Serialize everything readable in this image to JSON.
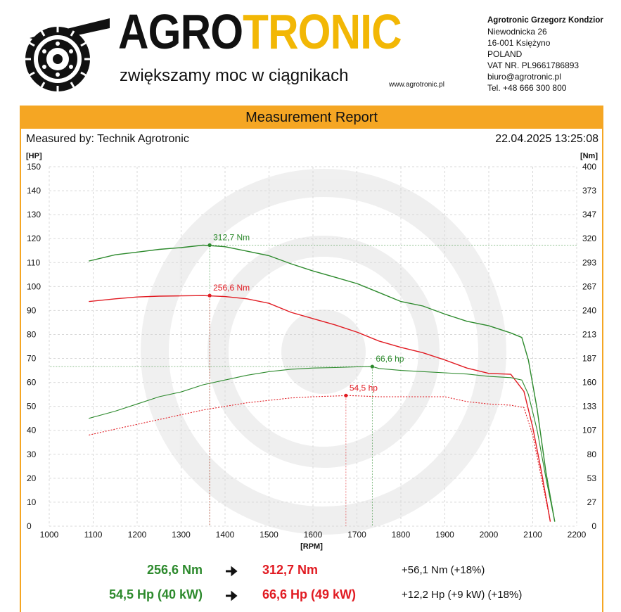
{
  "header": {
    "brand_part1": "AGRO",
    "brand_part2": "TRONIC",
    "tagline": "zwiększamy moc w ciągnikach",
    "website": "www.agrotronic.pl",
    "company": {
      "name": "Agrotronic Grzegorz Kondzior",
      "street": "Niewodnicka 26",
      "city": "16-001 Księżyno",
      "country": "POLAND",
      "vat": "VAT NR. PL9661786893",
      "email": "biuro@agrotronic.pl",
      "phone": "Tel. +48 666 300 800"
    }
  },
  "report": {
    "title": "Measurement Report",
    "measured_by": "Measured by: Technik Agrotronic",
    "datetime": "22.04.2025 13:25:08"
  },
  "colors": {
    "accent": "#f5a623",
    "tuned": "#2d8a2d",
    "stock": "#e11b22"
  },
  "chart_data": {
    "type": "line",
    "xlabel": "[RPM]",
    "ylabel_left": "[HP]",
    "ylabel_right": "[Nm]",
    "xlim": [
      1000,
      2200
    ],
    "ylim_left": [
      0,
      150
    ],
    "ylim_right": [
      0,
      400
    ],
    "x_ticks": [
      1000,
      1100,
      1200,
      1300,
      1400,
      1500,
      1600,
      1700,
      1800,
      1900,
      2000,
      2100,
      2200
    ],
    "y_ticks_left": [
      0,
      10,
      20,
      30,
      40,
      50,
      60,
      70,
      80,
      90,
      100,
      110,
      120,
      130,
      140,
      150
    ],
    "y_ticks_right": [
      "0",
      "27",
      "53",
      "80",
      "107",
      "133",
      "160",
      "187",
      "213",
      "240",
      "267",
      "293",
      "320",
      "347",
      "373",
      "400"
    ],
    "grid": true,
    "series": [
      {
        "axis": "right",
        "color": "#2d8a2d",
        "style": "solid",
        "points": [
          [
            1090,
            295
          ],
          [
            1150,
            302
          ],
          [
            1200,
            305
          ],
          [
            1250,
            308
          ],
          [
            1300,
            310
          ],
          [
            1350,
            312.7
          ],
          [
            1400,
            311
          ],
          [
            1450,
            306
          ],
          [
            1500,
            301
          ],
          [
            1550,
            292
          ],
          [
            1600,
            284
          ],
          [
            1650,
            277
          ],
          [
            1700,
            270
          ],
          [
            1750,
            260
          ],
          [
            1800,
            250
          ],
          [
            1850,
            245
          ],
          [
            1900,
            236
          ],
          [
            1950,
            228
          ],
          [
            2000,
            223
          ],
          [
            2050,
            215
          ],
          [
            2075,
            210
          ],
          [
            2090,
            185
          ],
          [
            2110,
            130
          ],
          [
            2130,
            60
          ],
          [
            2150,
            5
          ]
        ]
      },
      {
        "axis": "right",
        "color": "#e11b22",
        "style": "solid",
        "points": [
          [
            1090,
            250
          ],
          [
            1150,
            253
          ],
          [
            1200,
            255
          ],
          [
            1250,
            256
          ],
          [
            1300,
            256.3
          ],
          [
            1350,
            256.6
          ],
          [
            1400,
            255.5
          ],
          [
            1450,
            253
          ],
          [
            1500,
            248
          ],
          [
            1550,
            238
          ],
          [
            1600,
            231
          ],
          [
            1650,
            224
          ],
          [
            1700,
            216
          ],
          [
            1750,
            206
          ],
          [
            1800,
            199
          ],
          [
            1850,
            193
          ],
          [
            1900,
            185
          ],
          [
            1950,
            176
          ],
          [
            2000,
            170
          ],
          [
            2050,
            169
          ],
          [
            2080,
            150
          ],
          [
            2100,
            110
          ],
          [
            2120,
            60
          ],
          [
            2140,
            5
          ]
        ]
      },
      {
        "axis": "left",
        "color": "#2d8a2d",
        "style": "solid",
        "points": [
          [
            1090,
            45
          ],
          [
            1150,
            48
          ],
          [
            1200,
            51
          ],
          [
            1250,
            54
          ],
          [
            1300,
            56
          ],
          [
            1350,
            59
          ],
          [
            1400,
            61
          ],
          [
            1450,
            63
          ],
          [
            1500,
            64.5
          ],
          [
            1550,
            65.5
          ],
          [
            1600,
            66
          ],
          [
            1650,
            66.2
          ],
          [
            1700,
            66.5
          ],
          [
            1735,
            66.6
          ],
          [
            1750,
            65.8
          ],
          [
            1800,
            65
          ],
          [
            1850,
            64.5
          ],
          [
            1900,
            64
          ],
          [
            1950,
            63.5
          ],
          [
            2000,
            62.5
          ],
          [
            2050,
            62
          ],
          [
            2075,
            61
          ],
          [
            2090,
            55
          ],
          [
            2110,
            40
          ],
          [
            2130,
            20
          ],
          [
            2150,
            2
          ]
        ]
      },
      {
        "axis": "left",
        "color": "#e11b22",
        "style": "dotted",
        "points": [
          [
            1090,
            38
          ],
          [
            1150,
            40.5
          ],
          [
            1200,
            42.5
          ],
          [
            1250,
            44.5
          ],
          [
            1300,
            46.5
          ],
          [
            1350,
            48.5
          ],
          [
            1400,
            50
          ],
          [
            1450,
            51.5
          ],
          [
            1500,
            52.5
          ],
          [
            1550,
            53.5
          ],
          [
            1600,
            54
          ],
          [
            1650,
            54.3
          ],
          [
            1675,
            54.5
          ],
          [
            1700,
            54.4
          ],
          [
            1750,
            54
          ],
          [
            1800,
            54
          ],
          [
            1850,
            54
          ],
          [
            1900,
            54
          ],
          [
            1950,
            52
          ],
          [
            2000,
            51
          ],
          [
            2050,
            50.5
          ],
          [
            2080,
            49.5
          ],
          [
            2100,
            38
          ],
          [
            2120,
            20
          ],
          [
            2140,
            2
          ]
        ]
      }
    ],
    "annotations": [
      {
        "text": "312,7 Nm",
        "x": 1365,
        "value": 312.7,
        "axis": "right",
        "color": "#2d8a2d"
      },
      {
        "text": "256,6 Nm",
        "x": 1365,
        "value": 256.6,
        "axis": "right",
        "color": "#e11b22"
      },
      {
        "text": "66,6 hp",
        "x": 1735,
        "value": 66.6,
        "axis": "left",
        "color": "#2d8a2d"
      },
      {
        "text": "54,5 hp",
        "x": 1675,
        "value": 54.5,
        "axis": "left",
        "color": "#e11b22"
      }
    ]
  },
  "summary": {
    "torque_stock": "256,6 Nm",
    "torque_tuned": "312,7 Nm",
    "torque_delta": "+56,1 Nm (+18%)",
    "power_stock": "54,5 Hp (40 kW)",
    "power_tuned": "66,6 Hp (49 kW)",
    "power_delta": "+12,2 Hp (+9 kW) (+18%)",
    "arrow": "🠊"
  }
}
